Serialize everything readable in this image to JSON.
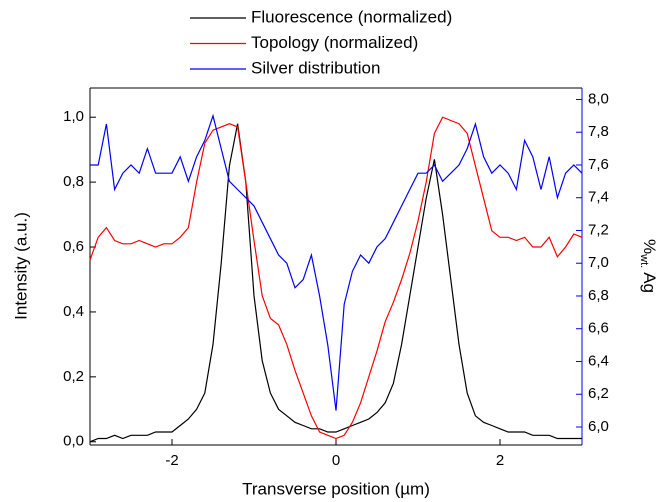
{
  "chart_data": {
    "type": "line",
    "xlabel": "Transverse position (µm)",
    "ylabel": "Intensity (a.u.)",
    "y2label": {
      "prefix": "%",
      "subscript": "wt.",
      "suffix": "Ag"
    },
    "xlim": [
      -3,
      3
    ],
    "xticks": [
      -2,
      0,
      2
    ],
    "ylim": [
      -0.01,
      1.09
    ],
    "yticks": [
      {
        "value": 0,
        "label": "0,0"
      },
      {
        "value": 0.2,
        "label": "0,2"
      },
      {
        "value": 0.4,
        "label": "0,4"
      },
      {
        "value": 0.6,
        "label": "0,6"
      },
      {
        "value": 0.8,
        "label": "0,8"
      },
      {
        "value": 1.0,
        "label": "1,0"
      }
    ],
    "y2lim": [
      5.89,
      8.07
    ],
    "y2ticks": [
      {
        "value": 6.0,
        "label": "6,0"
      },
      {
        "value": 6.2,
        "label": "6,2"
      },
      {
        "value": 6.4,
        "label": "6,4"
      },
      {
        "value": 6.6,
        "label": "6,6"
      },
      {
        "value": 6.8,
        "label": "6,8"
      },
      {
        "value": 7.0,
        "label": "7,0"
      },
      {
        "value": 7.2,
        "label": "7,2"
      },
      {
        "value": 7.4,
        "label": "7,4"
      },
      {
        "value": 7.6,
        "label": "7,6"
      },
      {
        "value": 7.8,
        "label": "7,8"
      },
      {
        "value": 8.0,
        "label": "8,0"
      }
    ],
    "y2color": "#0000ff",
    "x": [
      -3.0,
      -2.9,
      -2.8,
      -2.7,
      -2.6,
      -2.5,
      -2.4,
      -2.3,
      -2.2,
      -2.1,
      -2.0,
      -1.9,
      -1.8,
      -1.7,
      -1.6,
      -1.5,
      -1.4,
      -1.3,
      -1.2,
      -1.1,
      -1.0,
      -0.9,
      -0.8,
      -0.7,
      -0.6,
      -0.5,
      -0.4,
      -0.3,
      -0.2,
      -0.1,
      0.0,
      0.1,
      0.2,
      0.3,
      0.4,
      0.5,
      0.6,
      0.7,
      0.8,
      0.9,
      1.0,
      1.1,
      1.2,
      1.3,
      1.4,
      1.5,
      1.6,
      1.7,
      1.8,
      1.9,
      2.0,
      2.1,
      2.2,
      2.3,
      2.4,
      2.5,
      2.6,
      2.7,
      2.8,
      2.9,
      3.0
    ],
    "series": [
      {
        "name": "Fluorescence (normalized)",
        "color": "#000000",
        "axis": "y",
        "values": [
          0.0,
          0.01,
          0.01,
          0.02,
          0.01,
          0.02,
          0.02,
          0.02,
          0.03,
          0.03,
          0.03,
          0.05,
          0.07,
          0.1,
          0.15,
          0.3,
          0.55,
          0.85,
          0.98,
          0.8,
          0.45,
          0.25,
          0.15,
          0.1,
          0.08,
          0.06,
          0.05,
          0.04,
          0.04,
          0.03,
          0.03,
          0.04,
          0.05,
          0.06,
          0.07,
          0.09,
          0.12,
          0.18,
          0.3,
          0.45,
          0.6,
          0.75,
          0.87,
          0.7,
          0.5,
          0.3,
          0.15,
          0.08,
          0.06,
          0.05,
          0.04,
          0.03,
          0.03,
          0.03,
          0.02,
          0.02,
          0.02,
          0.01,
          0.01,
          0.01,
          0.01
        ]
      },
      {
        "name": "Topology (normalized)",
        "color": "#ff0000",
        "axis": "y",
        "values": [
          0.56,
          0.63,
          0.66,
          0.62,
          0.61,
          0.61,
          0.62,
          0.61,
          0.6,
          0.61,
          0.61,
          0.63,
          0.66,
          0.8,
          0.92,
          0.96,
          0.97,
          0.98,
          0.97,
          0.8,
          0.62,
          0.45,
          0.38,
          0.36,
          0.3,
          0.22,
          0.15,
          0.08,
          0.03,
          0.02,
          0.01,
          0.02,
          0.06,
          0.12,
          0.2,
          0.28,
          0.37,
          0.43,
          0.5,
          0.58,
          0.68,
          0.8,
          0.95,
          1.0,
          0.99,
          0.98,
          0.95,
          0.85,
          0.75,
          0.65,
          0.63,
          0.63,
          0.62,
          0.63,
          0.6,
          0.6,
          0.63,
          0.57,
          0.6,
          0.64,
          0.63
        ]
      },
      {
        "name": "Silver distribution",
        "color": "#0000ff",
        "axis": "y2",
        "values": [
          7.6,
          7.6,
          7.85,
          7.45,
          7.55,
          7.6,
          7.55,
          7.7,
          7.55,
          7.55,
          7.55,
          7.65,
          7.5,
          7.65,
          7.75,
          7.9,
          7.7,
          7.5,
          7.45,
          7.4,
          7.35,
          7.25,
          7.15,
          7.05,
          7.0,
          6.85,
          6.9,
          7.05,
          6.8,
          6.5,
          6.1,
          6.75,
          6.95,
          7.05,
          7.0,
          7.1,
          7.15,
          7.25,
          7.35,
          7.45,
          7.55,
          7.55,
          7.6,
          7.5,
          7.55,
          7.6,
          7.7,
          7.85,
          7.65,
          7.55,
          7.6,
          7.55,
          7.45,
          7.75,
          7.65,
          7.45,
          7.65,
          7.4,
          7.55,
          7.6,
          7.55
        ]
      }
    ]
  }
}
